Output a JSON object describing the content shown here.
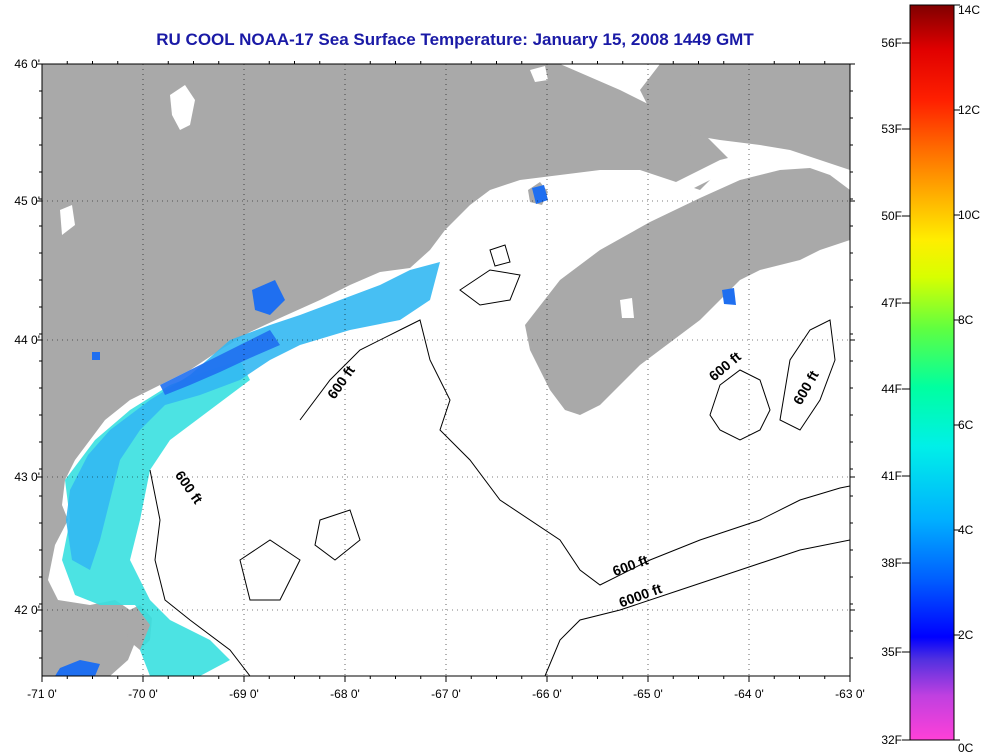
{
  "title": "RU COOL  NOAA-17  Sea Surface Temperature:  January 15, 2008 1449 GMT",
  "map": {
    "lon_ticks": [
      "-71 0'",
      "-70 0'",
      "-69 0'",
      "-68 0'",
      "-67 0'",
      "-66 0'",
      "-65 0'",
      "-64 0'",
      "-63 0'"
    ],
    "lat_ticks": [
      "46 0'",
      "45 0'",
      "44 0'",
      "43 0'",
      "42 0'"
    ],
    "contour_labels": [
      {
        "text": "600 ft",
        "rotation": -55
      },
      {
        "text": "600 ft",
        "rotation": 55
      },
      {
        "text": "600 ft",
        "rotation": -40
      },
      {
        "text": "600 ft",
        "rotation": -60
      },
      {
        "text": "600 ft",
        "rotation": -20
      },
      {
        "text": "6000 ft",
        "rotation": -20
      }
    ],
    "colors": {
      "land": "#a9a9a9",
      "ocean_masked": "#ffffff",
      "cold_water": "#1f6ff0",
      "mid_water": "#33c0f0",
      "warm_water": "#38e0e0",
      "contour": "#000000",
      "grid": "#000000"
    }
  },
  "colorbar": {
    "f_labels": [
      "56F",
      "53F",
      "50F",
      "47F",
      "44F",
      "41F",
      "38F",
      "35F",
      "32F"
    ],
    "c_labels": [
      "14C",
      "12C",
      "10C",
      "8C",
      "6C",
      "4C",
      "2C",
      "0C"
    ]
  }
}
